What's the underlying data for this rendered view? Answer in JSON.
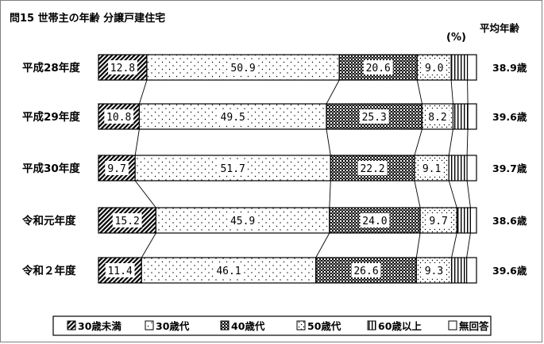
{
  "title": "問15 世帯主の年齢 分譲戸建住宅",
  "unit_label": "(%)",
  "avg_header": "平均年齢",
  "chart_data": {
    "type": "bar",
    "orientation": "horizontal-stacked-100",
    "categories": [
      "平成28年度",
      "平成29年度",
      "平成30年度",
      "令和元年度",
      "令和２年度"
    ],
    "series": [
      {
        "name": "30歳未満",
        "values": [
          12.8,
          10.8,
          9.7,
          15.2,
          11.4
        ],
        "labels": [
          "12.8",
          "10.8",
          "9.7",
          "15.2",
          "11.4"
        ],
        "pattern": "diag-dense"
      },
      {
        "name": "30歳代",
        "values": [
          50.9,
          49.5,
          51.7,
          45.9,
          46.1
        ],
        "labels": [
          "50.9",
          "49.5",
          "51.7",
          "45.9",
          "46.1"
        ],
        "pattern": "sparse-dots"
      },
      {
        "name": "40歳代",
        "values": [
          20.6,
          25.3,
          22.2,
          24.0,
          26.6
        ],
        "labels": [
          "20.6",
          "25.3",
          "22.2",
          "24.0",
          "26.6"
        ],
        "pattern": "dark-check"
      },
      {
        "name": "50歳代",
        "values": [
          9.0,
          8.2,
          9.1,
          9.7,
          9.3
        ],
        "labels": [
          "9.0",
          "8.2",
          "9.1",
          "9.7",
          "9.3"
        ],
        "pattern": "fine-dots"
      },
      {
        "name": "60歳以上",
        "values": [
          4.3,
          3.9,
          4.8,
          3.6,
          4.0
        ],
        "pattern": "vertical-lines"
      },
      {
        "name": "無回答",
        "values": [
          2.4,
          2.3,
          2.5,
          1.6,
          2.6
        ],
        "pattern": "white"
      }
    ],
    "averages": [
      "38.9歳",
      "39.6歳",
      "39.7歳",
      "38.6歳",
      "39.6歳"
    ],
    "xlim": [
      0,
      100
    ],
    "legend_position": "bottom"
  }
}
